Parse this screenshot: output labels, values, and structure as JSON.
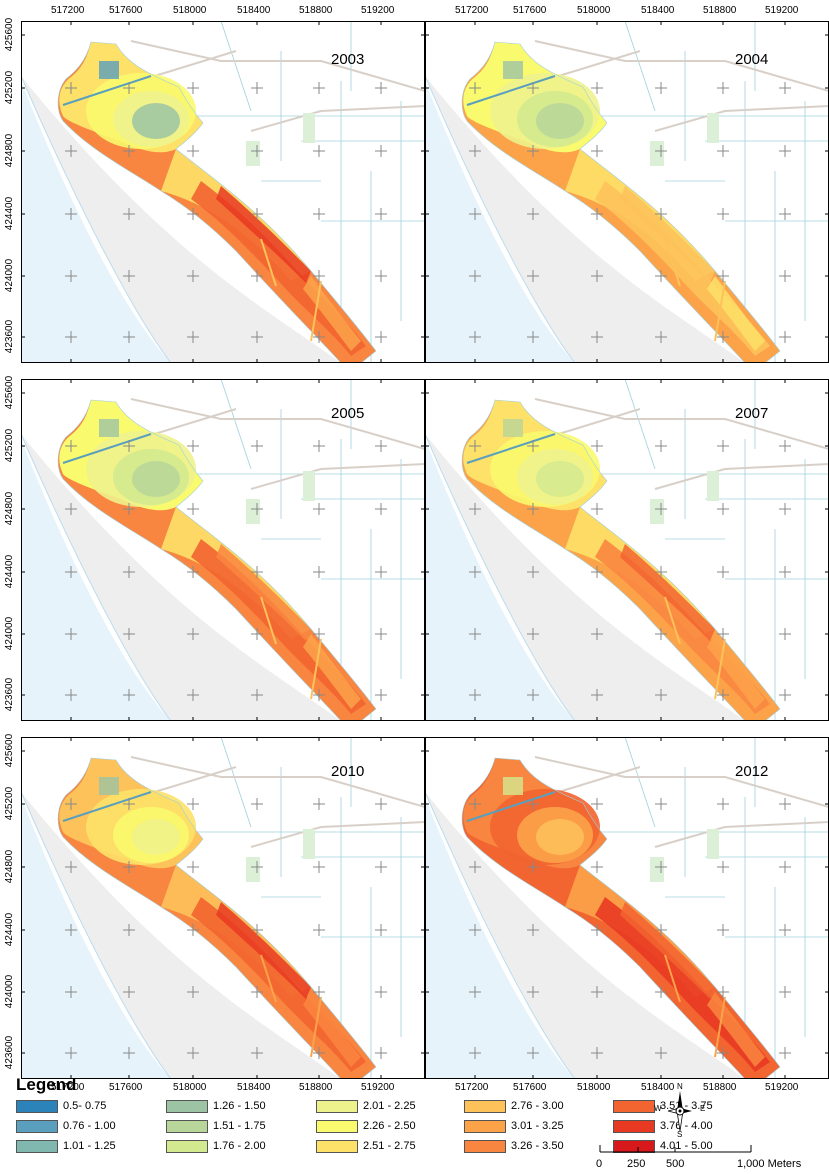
{
  "panels": [
    {
      "year": "2003",
      "scheme": "s2003"
    },
    {
      "year": "2004",
      "scheme": "s2004"
    },
    {
      "year": "2005",
      "scheme": "s2005"
    },
    {
      "year": "2007",
      "scheme": "s2007"
    },
    {
      "year": "2010",
      "scheme": "s2010"
    },
    {
      "year": "2012",
      "scheme": "s2012"
    }
  ],
  "x_ticks": [
    "517200",
    "517600",
    "518000",
    "518400",
    "518800",
    "519200"
  ],
  "y_ticks": [
    "425600",
    "425200",
    "424800",
    "424400",
    "424000",
    "423600"
  ],
  "legend": {
    "title": "Legend",
    "classes": [
      {
        "label": "0.5- 0.75",
        "color": "#2b83ba"
      },
      {
        "label": "0.76 - 1.00",
        "color": "#5a9fbe"
      },
      {
        "label": "1.01 - 1.25",
        "color": "#80b8b0"
      },
      {
        "label": "1.26 - 1.50",
        "color": "#9cc3a4"
      },
      {
        "label": "1.51 - 1.75",
        "color": "#b8d69a"
      },
      {
        "label": "1.76 - 2.00",
        "color": "#d3e98f"
      },
      {
        "label": "2.01 - 2.25",
        "color": "#eef28c"
      },
      {
        "label": "2.26 - 2.50",
        "color": "#fafa6e"
      },
      {
        "label": "2.51 - 2.75",
        "color": "#fde168"
      },
      {
        "label": "2.76 - 3.00",
        "color": "#fdc25a"
      },
      {
        "label": "3.01 - 3.25",
        "color": "#fca34a"
      },
      {
        "label": "3.26 - 3.50",
        "color": "#f98640"
      },
      {
        "label": "3.51 - 3.75",
        "color": "#f26430"
      },
      {
        "label": "3.76 - 4.00",
        "color": "#e83a22"
      },
      {
        "label": "4.01 - 5.00",
        "color": "#d7191c"
      }
    ]
  },
  "compass": {
    "n": "N",
    "s": "S",
    "e": "E",
    "w": "W"
  },
  "scalebar": {
    "labels": [
      "0",
      "250",
      "500",
      "1,000 Meters"
    ]
  }
}
